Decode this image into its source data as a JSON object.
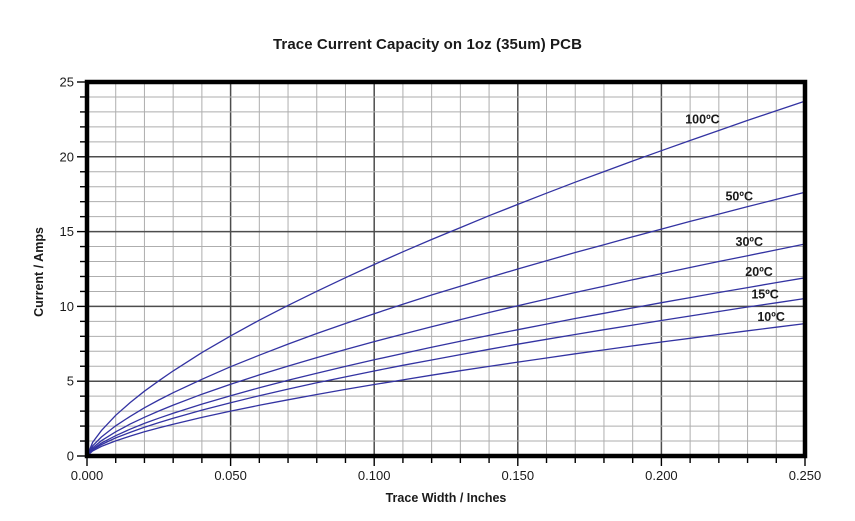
{
  "chart_data": {
    "type": "line",
    "title": "Trace Current Capacity on 1oz (35um) PCB",
    "xlabel": "Trace Width / Inches",
    "ylabel": "Current / Amps",
    "xlim": [
      0,
      0.25
    ],
    "ylim": [
      0,
      25
    ],
    "grid": "major+minor",
    "legend_position": "inline-curve-labels",
    "x_minor_step": 0.01,
    "y_minor_step": 1,
    "x_major_ticks": [
      0,
      0.05,
      0.1,
      0.15,
      0.2,
      0.25
    ],
    "x_tick_labels": [
      "0.000",
      "0.050",
      "0.100",
      "0.150",
      "0.200",
      "0.250"
    ],
    "y_major_ticks": [
      0,
      5,
      10,
      15,
      20,
      25
    ],
    "y_tick_labels": [
      "0",
      "5",
      "10",
      "15",
      "20",
      "25"
    ],
    "x": [
      0,
      0.002,
      0.005,
      0.01,
      0.015,
      0.02,
      0.025,
      0.03,
      0.04,
      0.05,
      0.06,
      0.07,
      0.08,
      0.09,
      0.1,
      0.11,
      0.12,
      0.13,
      0.14,
      0.15,
      0.16,
      0.17,
      0.18,
      0.19,
      0.2,
      0.21,
      0.22,
      0.23,
      0.24,
      0.25
    ],
    "series": [
      {
        "name": "10ºC",
        "values": [
          0,
          0.34,
          0.64,
          1.01,
          1.33,
          1.62,
          1.88,
          2.12,
          2.58,
          3.0,
          3.39,
          3.76,
          4.11,
          4.45,
          4.78,
          5.09,
          5.4,
          5.7,
          5.99,
          6.28,
          6.55,
          6.83,
          7.09,
          7.36,
          7.62,
          7.87,
          8.12,
          8.37,
          8.61,
          8.85
        ],
        "label_at": {
          "x": 0.2382,
          "y": 9.3
        }
      },
      {
        "name": "15ºC",
        "values": [
          0,
          0.41,
          0.76,
          1.21,
          1.58,
          1.92,
          2.23,
          2.53,
          3.07,
          3.56,
          4.03,
          4.47,
          4.89,
          5.29,
          5.68,
          6.06,
          6.42,
          6.78,
          7.13,
          7.47,
          7.8,
          8.12,
          8.44,
          8.75,
          9.06,
          9.36,
          9.66,
          9.96,
          10.24,
          10.53
        ],
        "label_at": {
          "x": 0.2361,
          "y": 10.78
        }
      },
      {
        "name": "20ºC",
        "values": [
          0,
          0.46,
          0.86,
          1.36,
          1.79,
          2.18,
          2.53,
          2.86,
          3.47,
          4.03,
          4.56,
          5.06,
          5.53,
          5.99,
          6.43,
          6.85,
          7.27,
          7.67,
          8.06,
          8.44,
          8.82,
          9.19,
          9.54,
          9.9,
          10.25,
          10.59,
          10.93,
          11.26,
          11.59,
          11.91
        ],
        "label_at": {
          "x": 0.234,
          "y": 12.3
        }
      },
      {
        "name": "30ºC",
        "values": [
          0,
          0.55,
          1.02,
          1.62,
          2.13,
          2.59,
          3.01,
          3.4,
          4.13,
          4.79,
          5.42,
          6.01,
          6.58,
          7.12,
          7.65,
          8.15,
          8.64,
          9.12,
          9.59,
          10.05,
          10.49,
          10.93,
          11.35,
          11.78,
          12.19,
          12.6,
          13.0,
          13.39,
          13.78,
          14.17
        ],
        "label_at": {
          "x": 0.2306,
          "y": 14.3
        }
      },
      {
        "name": "50ºC",
        "values": [
          0,
          0.68,
          1.27,
          2.02,
          2.65,
          3.22,
          3.74,
          4.23,
          5.13,
          5.97,
          6.74,
          7.48,
          8.19,
          8.86,
          9.51,
          10.14,
          10.76,
          11.35,
          11.93,
          12.5,
          13.05,
          13.6,
          14.12,
          14.65,
          15.17,
          15.68,
          16.17,
          16.67,
          17.15,
          17.63
        ],
        "label_at": {
          "x": 0.2271,
          "y": 17.35
        }
      },
      {
        "name": "100ºC",
        "values": [
          0,
          0.92,
          1.7,
          2.72,
          3.57,
          4.33,
          5.03,
          5.69,
          6.91,
          8.03,
          9.08,
          10.07,
          11.01,
          11.92,
          12.8,
          13.65,
          14.47,
          15.27,
          16.06,
          16.82,
          17.57,
          18.3,
          19.01,
          19.72,
          20.41,
          21.09,
          21.76,
          22.43,
          23.08,
          23.72
        ],
        "label_at": {
          "x": 0.2143,
          "y": 22.5
        }
      }
    ],
    "colors": {
      "curve": "#3333a2",
      "grid_minor": "#aeaeae",
      "grid_major": "#4d4d4d",
      "frame": "#000000",
      "text": "#1a1a1a"
    }
  }
}
